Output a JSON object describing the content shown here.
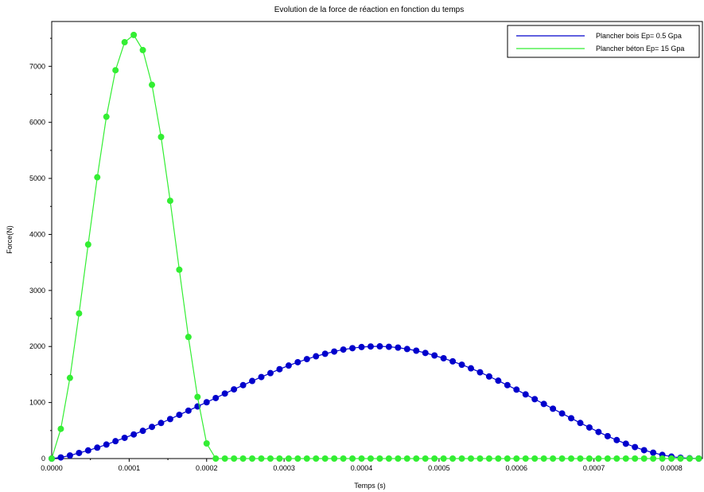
{
  "chart_data": {
    "type": "line",
    "title": "Evolution de la force de réaction en fonction du temps",
    "xlabel": "Temps (s)",
    "ylabel": "Force(N)",
    "xlim": [
      0,
      0.00084
    ],
    "ylim": [
      0,
      7800
    ],
    "xticks": [
      "0.0000",
      "0.0001",
      "0.0002",
      "0.0003",
      "0.0004",
      "0.0005",
      "0.0006",
      "0.0007",
      "0.0008"
    ],
    "yticks": [
      "0",
      "1000",
      "2000",
      "3000",
      "4000",
      "5000",
      "6000",
      "7000"
    ],
    "grid": false,
    "legend_position": "top-right",
    "series": [
      {
        "name": "Plancher bois Ep= 0.5 Gpa",
        "color": "#0000cc",
        "x": [
          0.0,
          1.176e-05,
          2.353e-05,
          3.529e-05,
          4.706e-05,
          5.882e-05,
          7.059e-05,
          8.235e-05,
          9.412e-05,
          0.00010588,
          0.00011765,
          0.00012941,
          0.00014118,
          0.00015294,
          0.00016471,
          0.00017647,
          0.00018824,
          0.0002,
          0.00021176,
          0.00022353,
          0.00023529,
          0.00024706,
          0.00025882,
          0.00027059,
          0.00028235,
          0.00029412,
          0.00030588,
          0.00031765,
          0.00032941,
          0.00034118,
          0.00035294,
          0.00036471,
          0.00037647,
          0.00038824,
          0.0004,
          0.00041176,
          0.00042353,
          0.00043529,
          0.00044706,
          0.00045882,
          0.00047059,
          0.00048235,
          0.00049412,
          0.00050588,
          0.00051765,
          0.00052941,
          0.00054118,
          0.00055294,
          0.00056471,
          0.00057647,
          0.00058824,
          0.0006,
          0.00061176,
          0.00062353,
          0.00063529,
          0.00064706,
          0.00065882,
          0.00067059,
          0.00068235,
          0.00069412,
          0.00070588,
          0.00071765,
          0.00072941,
          0.00074118,
          0.00075294,
          0.00076471,
          0.00077647,
          0.00078824,
          0.0008,
          0.00081176,
          0.00082353,
          0.00083529
        ],
        "y": [
          0,
          20,
          55,
          100,
          145,
          195,
          250,
          310,
          370,
          430,
          495,
          565,
          635,
          705,
          780,
          855,
          930,
          1005,
          1080,
          1160,
          1235,
          1310,
          1385,
          1455,
          1525,
          1595,
          1660,
          1720,
          1775,
          1825,
          1870,
          1910,
          1945,
          1970,
          1990,
          2000,
          2003,
          1995,
          1980,
          1955,
          1925,
          1885,
          1840,
          1790,
          1735,
          1675,
          1610,
          1540,
          1465,
          1390,
          1310,
          1230,
          1145,
          1060,
          975,
          890,
          805,
          720,
          635,
          555,
          475,
          400,
          330,
          265,
          205,
          150,
          105,
          65,
          35,
          15,
          5,
          0
        ]
      },
      {
        "name": "Plancher béton Ep= 15 Gpa",
        "color": "#33ee33",
        "x": [
          0.0,
          1.176e-05,
          2.353e-05,
          3.529e-05,
          4.706e-05,
          5.882e-05,
          7.059e-05,
          8.235e-05,
          9.412e-05,
          0.00010588,
          0.00011765,
          0.00012941,
          0.00014118,
          0.00015294,
          0.00016471,
          0.00017647,
          0.00018824,
          0.0002,
          0.00021176,
          0.00022353,
          0.00023529,
          0.00024706,
          0.00025882,
          0.00027059,
          0.00028235,
          0.00029412,
          0.00030588,
          0.00031765,
          0.00032941,
          0.00034118,
          0.00035294,
          0.00036471,
          0.00037647,
          0.00038824,
          0.0004,
          0.00041176,
          0.00042353,
          0.00043529,
          0.00044706,
          0.00045882,
          0.00047059,
          0.00048235,
          0.00049412,
          0.00050588,
          0.00051765,
          0.00052941,
          0.00054118,
          0.00055294,
          0.00056471,
          0.00057647,
          0.00058824,
          0.0006,
          0.00061176,
          0.00062353,
          0.00063529,
          0.00064706,
          0.00065882,
          0.00067059,
          0.00068235,
          0.00069412,
          0.00070588,
          0.00071765,
          0.00072941,
          0.00074118,
          0.00075294,
          0.00076471,
          0.00077647,
          0.00078824,
          0.0008,
          0.00081176,
          0.00082353,
          0.00083529
        ],
        "y": [
          0,
          530,
          1440,
          2590,
          3820,
          5020,
          6100,
          6930,
          7430,
          7560,
          7290,
          6670,
          5740,
          4600,
          3370,
          2170,
          1100,
          270,
          0,
          0,
          0,
          0,
          0,
          0,
          0,
          0,
          0,
          0,
          0,
          0,
          0,
          0,
          0,
          0,
          0,
          0,
          0,
          0,
          0,
          0,
          0,
          0,
          0,
          0,
          0,
          0,
          0,
          0,
          0,
          0,
          0,
          0,
          0,
          0,
          0,
          0,
          0,
          0,
          0,
          0,
          0,
          0,
          0,
          0,
          0,
          0,
          0,
          0,
          0,
          0,
          0,
          0
        ]
      }
    ]
  }
}
